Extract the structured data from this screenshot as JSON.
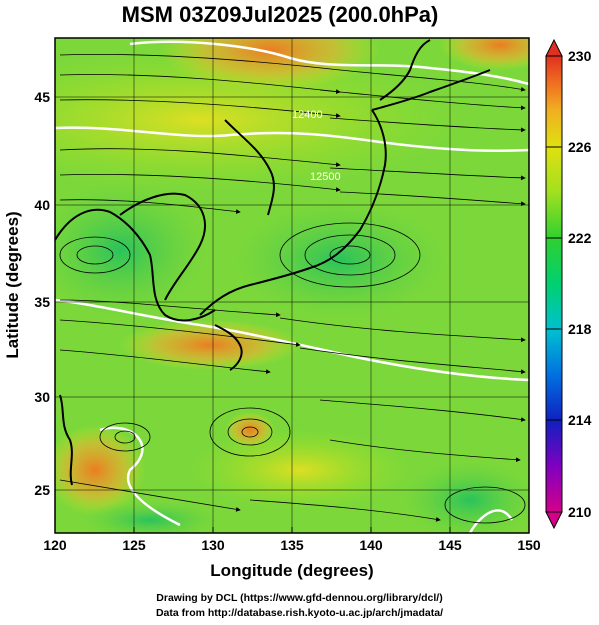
{
  "title": "MSM 03Z09Jul2025 (200.0hPa)",
  "xlabel": "Longitude (degrees)",
  "ylabel": "Latitude  (degrees)",
  "xticks": [
    "120",
    "125",
    "130",
    "135",
    "140",
    "145",
    "150"
  ],
  "yticks": [
    "25",
    "30",
    "35",
    "40",
    "45"
  ],
  "xlim": [
    120,
    150
  ],
  "ylim": [
    22.4,
    48
  ],
  "colorbar": {
    "ticks": [
      "230",
      "226",
      "222",
      "218",
      "214",
      "210"
    ],
    "range": [
      210,
      230
    ],
    "colors": [
      "#d4008a",
      "#8000c0",
      "#1020c0",
      "#0070e0",
      "#00c0d0",
      "#00d070",
      "#30d030",
      "#a0e020",
      "#e0e010",
      "#f0b020",
      "#f07020",
      "#e03020"
    ]
  },
  "contour_labels": [
    "12400",
    "12500"
  ],
  "credits": {
    "line1": "Drawing by DCL (https://www.gfd-dennou.org/library/dcl/)",
    "line2": "Data from http://database.rish.kyoto-u.ac.jp/arch/jmadata/"
  }
}
